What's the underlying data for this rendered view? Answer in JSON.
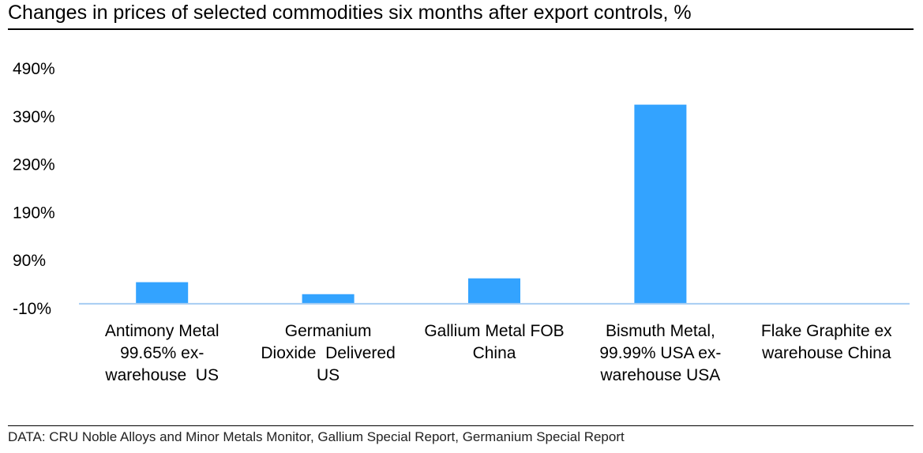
{
  "title": "Changes in prices of selected commodities six months after export controls, %",
  "source": "DATA: CRU Noble Alloys and Minor Metals Monitor, Gallium Special Report, Germanium Special Report",
  "chart_data": {
    "type": "bar",
    "categories": [
      [
        "Antimony Metal",
        "99.65% ex-",
        "warehouse  US"
      ],
      [
        "Germanium",
        "Dioxide  Delivered",
        "US"
      ],
      [
        "Gallium Metal FOB",
        "China"
      ],
      [
        "Bismuth Metal,",
        "99.99% USA ex-",
        "warehouse USA"
      ],
      [
        "Flake Graphite ex",
        "warehouse China"
      ]
    ],
    "values": [
      45,
      20,
      53,
      415,
      0
    ],
    "ylim": [
      -10,
      490
    ],
    "yticks": [
      -10,
      90,
      190,
      290,
      390,
      490
    ],
    "ytick_labels": [
      "-10%",
      "90%",
      "190%",
      "290%",
      "390%",
      "490%"
    ],
    "bar_color": "#33a3ff",
    "axis_color": "#a6cdf2",
    "grid": false,
    "legend": false
  }
}
